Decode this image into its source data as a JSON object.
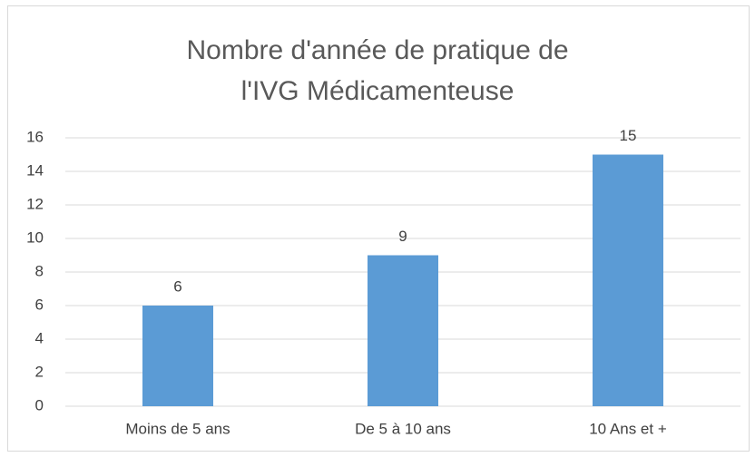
{
  "chart_data": {
    "type": "bar",
    "title": [
      "Nombre d'année de pratique de",
      "l'IVG Médicamenteuse"
    ],
    "categories": [
      "Moins de 5 ans",
      "De 5 à 10 ans",
      "10 Ans et +"
    ],
    "values": [
      6,
      9,
      15
    ],
    "color": "#5b9bd5",
    "ylim": [
      0,
      16
    ],
    "yticks": [
      0,
      2,
      4,
      6,
      8,
      10,
      12,
      14,
      16
    ],
    "grid": true
  }
}
